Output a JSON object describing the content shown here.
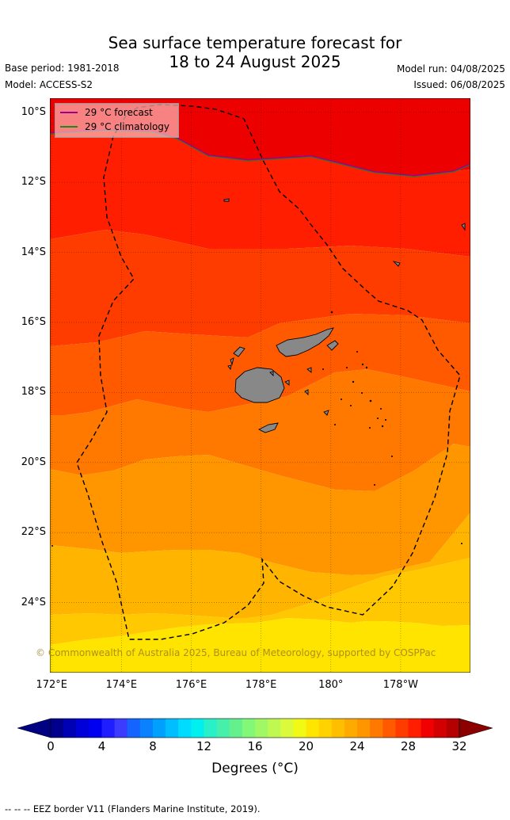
{
  "title": {
    "line1": "Sea surface temperature forecast for",
    "line2": "18 to 24 August 2025"
  },
  "meta": {
    "base_period": "Base period: 1981-2018",
    "model": "Model: ACCESS-S2",
    "model_run": "Model run: 04/08/2025",
    "issued": "Issued: 06/08/2025"
  },
  "map": {
    "latitude_labels": [
      "10°S",
      "12°S",
      "14°S",
      "16°S",
      "18°S",
      "20°S",
      "22°S",
      "24°S"
    ],
    "latitude_values": [
      -10,
      -12,
      -14,
      -16,
      -18,
      -20,
      -22,
      -24
    ],
    "longitude_labels": [
      "172°E",
      "174°E",
      "176°E",
      "178°E",
      "180°",
      "178°W"
    ],
    "longitude_values": [
      172,
      174,
      176,
      178,
      180,
      182
    ],
    "lat_range": [
      -9.6,
      -26.0
    ],
    "lon_range": [
      171.95,
      184.0
    ],
    "land_color": "#888888",
    "copyright": "© Commonwealth of Australia 2025, Bureau of Meteorology, supported by COSPPac"
  },
  "legend": {
    "forecast_label": "29 °C  forecast",
    "forecast_color": "#a0008c",
    "climatology_label": "29 °C  climatology",
    "climatology_color": "#1a8c1a"
  },
  "colorbar": {
    "tick_labels": [
      "0",
      "4",
      "8",
      "12",
      "16",
      "20",
      "24",
      "28",
      "32"
    ],
    "tick_values": [
      0,
      4,
      8,
      12,
      16,
      20,
      24,
      28,
      32
    ],
    "range": [
      0,
      32
    ],
    "step": 1,
    "label": "Degrees (°C)",
    "colors": [
      "#00008c",
      "#0000b4",
      "#0000d8",
      "#0000f0",
      "#1e1eff",
      "#3c3cff",
      "#1464ff",
      "#0a82ff",
      "#00a0ff",
      "#00beff",
      "#00dcff",
      "#00f0f0",
      "#28f0c8",
      "#46f0aa",
      "#64f08c",
      "#82f878",
      "#a0f864",
      "#bef850",
      "#dcfa3c",
      "#f0fa14",
      "#ffe600",
      "#ffd200",
      "#ffbe00",
      "#ffaa00",
      "#ff9600",
      "#ff7800",
      "#ff5a00",
      "#ff3c00",
      "#ff1e00",
      "#f00000",
      "#d20000",
      "#b40000"
    ],
    "under_color": "#000082",
    "over_color": "#8c0000"
  },
  "footer": "--  --  -- EEZ border V11 (Flanders Marine Institute, 2019)."
}
